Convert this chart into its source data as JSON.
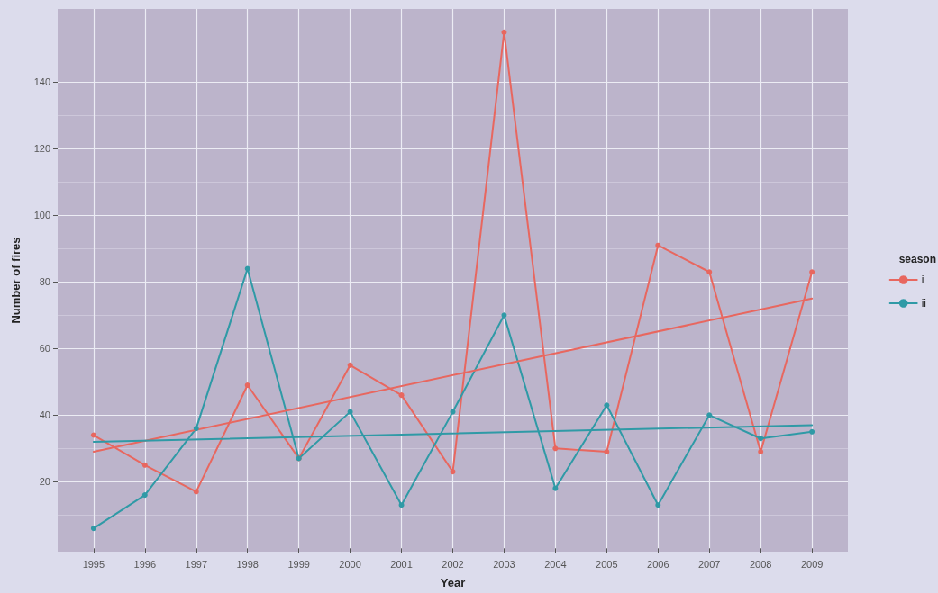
{
  "chart_data": {
    "type": "line",
    "xlabel": "Year",
    "ylabel": "Number of fires",
    "legend_title": "season",
    "legend": "right",
    "grid": true,
    "marker": "circle",
    "x": [
      1995,
      1996,
      1997,
      1998,
      1999,
      2000,
      2001,
      2002,
      2003,
      2004,
      2005,
      2006,
      2007,
      2008,
      2009
    ],
    "xlim": [
      1994.3,
      2009.7
    ],
    "xticks": [
      1995,
      1996,
      1997,
      1998,
      1999,
      2000,
      2001,
      2002,
      2003,
      2004,
      2005,
      2006,
      2007,
      2008,
      2009
    ],
    "ylim": [
      -1,
      162
    ],
    "yticks": [
      20,
      40,
      60,
      80,
      100,
      120,
      140
    ],
    "series": [
      {
        "name": "i",
        "color": "#e8675f",
        "values": [
          34,
          25,
          17,
          49,
          27,
          55,
          46,
          23,
          155,
          30,
          29,
          91,
          83,
          29,
          83
        ]
      },
      {
        "name": "ii",
        "color": "#2f9aa6",
        "values": [
          6,
          16,
          36,
          84,
          27,
          41,
          13,
          41,
          70,
          18,
          43,
          13,
          40,
          33,
          35
        ]
      },
      {
        "type": "line",
        "color": "#e8675f",
        "marker": "none",
        "values": [
          29,
          null,
          null,
          null,
          null,
          null,
          null,
          null,
          null,
          null,
          null,
          null,
          null,
          null,
          75
        ]
      },
      {
        "type": "line",
        "color": "#2f9aa6",
        "marker": "none",
        "values": [
          32,
          null,
          null,
          null,
          null,
          null,
          null,
          null,
          null,
          null,
          null,
          null,
          null,
          null,
          37
        ]
      }
    ]
  }
}
